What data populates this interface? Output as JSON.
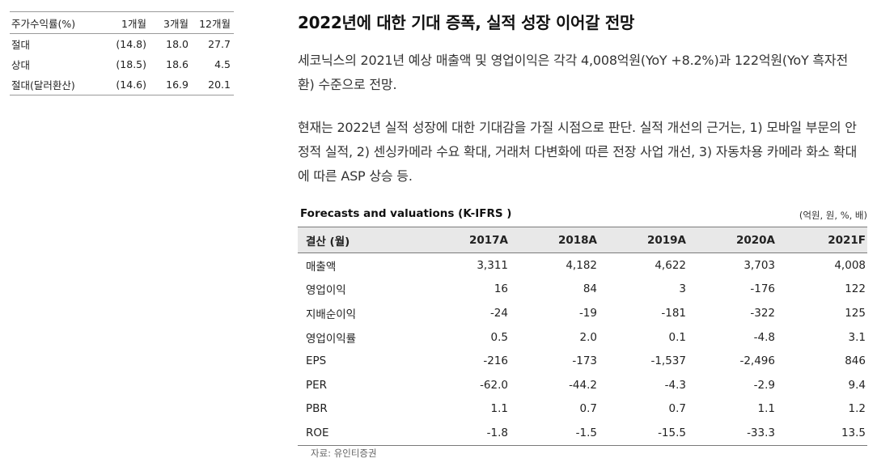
{
  "performance_table": {
    "headers": [
      "주가수익률(%)",
      "1개월",
      "3개월",
      "12개월"
    ],
    "rows": [
      {
        "label": "절대",
        "m1": "(14.8)",
        "m3": "18.0",
        "m12": "27.7"
      },
      {
        "label": "상대",
        "m1": "(18.5)",
        "m3": "18.6",
        "m12": "4.5"
      },
      {
        "label": "절대(달러환산)",
        "m1": "(14.6)",
        "m3": "16.9",
        "m12": "20.1"
      }
    ]
  },
  "title": "2022년에 대한 기대 증폭, 실적 성장 이어갈 전망",
  "paragraphs": [
    "세코닉스의 2021년 예상 매출액 및 영업이익은 각각 4,008억원(YoY +8.2%)과 122억원(YoY 흑자전환) 수준으로 전망.",
    "현재는 2022년 실적 성장에 대한 기대감을 가질 시점으로 판단. 실적 개선의 근거는, 1) 모바일 부문의 안정적 실적, 2) 센싱카메라 수요 확대, 거래처 다변화에 따른 전장 사업 개선, 3) 자동차용 카메라 화소 확대에 따른 ASP 상승 등."
  ],
  "forecast": {
    "title": "Forecasts and valuations (K-IFRS )",
    "unit": "(억원, 원, %, 배)",
    "headers": [
      "결산 (월)",
      "2017A",
      "2018A",
      "2019A",
      "2020A",
      "2021F"
    ],
    "rows": [
      [
        "매출액",
        "3,311",
        "4,182",
        "4,622",
        "3,703",
        "4,008"
      ],
      [
        "영업이익",
        "16",
        "84",
        "3",
        "-176",
        "122"
      ],
      [
        "지배순이익",
        "-24",
        "-19",
        "-181",
        "-322",
        "125"
      ],
      [
        "영업이익률",
        "0.5",
        "2.0",
        "0.1",
        "-4.8",
        "3.1"
      ],
      [
        "EPS",
        "-216",
        "-173",
        "-1,537",
        "-2,496",
        "846"
      ],
      [
        "PER",
        "-62.0",
        "-44.2",
        "-4.3",
        "-2.9",
        "9.4"
      ],
      [
        "PBR",
        "1.1",
        "0.7",
        "0.7",
        "1.1",
        "1.2"
      ],
      [
        "ROE",
        "-1.8",
        "-1.5",
        "-15.5",
        "-33.3",
        "13.5"
      ]
    ],
    "source": "자료: 유인티증권"
  }
}
